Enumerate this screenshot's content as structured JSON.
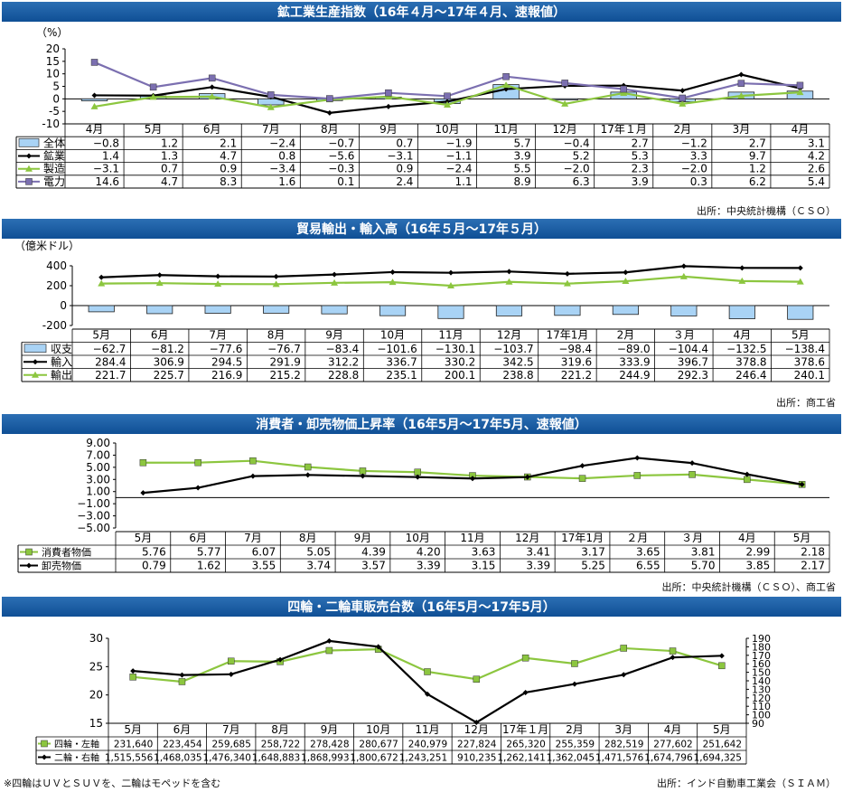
{
  "chart_data": [
    {
      "type": "bar",
      "title": "鉱工業生産指数（16年４月～17年４月、速報値）",
      "ylabel": "（%）",
      "ylim": [
        -10,
        20
      ],
      "yticks": [
        "20",
        "15",
        "10",
        "5",
        "0",
        "-5",
        "-10"
      ],
      "categories": [
        "4月",
        "5月",
        "6月",
        "7月",
        "8月",
        "9月",
        "10月",
        "11月",
        "12月",
        "17年１月",
        "2月",
        "3月",
        "4月"
      ],
      "series": [
        {
          "name": "全体",
          "kind": "bar",
          "color": "#a9d3f5",
          "values": [
            -0.8,
            1.2,
            2.1,
            -2.4,
            -0.7,
            0.7,
            -1.9,
            5.7,
            -0.4,
            2.7,
            -1.2,
            2.7,
            3.1
          ],
          "labels": [
            "−0.8",
            "1.2",
            "2.1",
            "−2.4",
            "−0.7",
            "0.7",
            "−1.9",
            "5.7",
            "−0.4",
            "2.7",
            "−1.2",
            "2.7",
            "3.1"
          ]
        },
        {
          "name": "鉱業",
          "kind": "line",
          "color": "#000000",
          "marker": "diamond",
          "values": [
            1.4,
            1.3,
            4.7,
            0.8,
            -5.6,
            -3.1,
            -1.1,
            3.9,
            5.2,
            5.3,
            3.3,
            9.7,
            4.2
          ],
          "labels": [
            "1.4",
            "1.3",
            "4.7",
            "0.8",
            "−5.6",
            "−3.1",
            "−1.1",
            "3.9",
            "5.2",
            "5.3",
            "3.3",
            "9.7",
            "4.2"
          ]
        },
        {
          "name": "製造",
          "kind": "line",
          "color": "#8cc63f",
          "marker": "triangle",
          "values": [
            -3.1,
            0.7,
            0.9,
            -3.4,
            -0.3,
            0.9,
            -2.4,
            5.5,
            -2.0,
            2.3,
            -2.0,
            1.2,
            2.6
          ],
          "labels": [
            "−3.1",
            "0.7",
            "0.9",
            "−3.4",
            "−0.3",
            "0.9",
            "−2.4",
            "5.5",
            "−2.0",
            "2.3",
            "−2.0",
            "1.2",
            "2.6"
          ]
        },
        {
          "name": "電力",
          "kind": "line",
          "color": "#7b6fb0",
          "marker": "square",
          "values": [
            14.6,
            4.7,
            8.3,
            1.6,
            0.1,
            2.4,
            1.1,
            8.9,
            6.3,
            3.9,
            0.3,
            6.2,
            5.4
          ],
          "labels": [
            "14.6",
            "4.7",
            "8.3",
            "1.6",
            "0.1",
            "2.4",
            "1.1",
            "8.9",
            "6.3",
            "3.9",
            "0.3",
            "6.2",
            "5.4"
          ]
        }
      ],
      "source": "出所：中央統計機構（ＣＳＯ）"
    },
    {
      "type": "bar",
      "title": "貿易輸出・輸入高（16年５月～17年５月）",
      "ylabel": "（億米ドル）",
      "ylim": [
        -200,
        400
      ],
      "yticks": [
        "400",
        "200",
        "0",
        "-200"
      ],
      "categories": [
        "5月",
        "6月",
        "7月",
        "8月",
        "9月",
        "10月",
        "11月",
        "12月",
        "17年1月",
        "2月",
        "３月",
        "4月",
        "5月"
      ],
      "series": [
        {
          "name": "収支",
          "kind": "bar",
          "color": "#a9d3f5",
          "values": [
            -62.7,
            -81.2,
            -77.6,
            -76.7,
            -83.4,
            -101.6,
            -130.1,
            -103.7,
            -98.4,
            -89.0,
            -104.4,
            -132.5,
            -138.4
          ],
          "labels": [
            "−62.7",
            "−81.2",
            "−77.6",
            "−76.7",
            "−83.4",
            "−101.6",
            "−130.1",
            "−103.7",
            "−98.4",
            "−89.0",
            "−104.4",
            "−132.5",
            "−138.4"
          ]
        },
        {
          "name": "輸入",
          "kind": "line",
          "color": "#000000",
          "marker": "diamond",
          "values": [
            284.4,
            306.9,
            294.5,
            291.9,
            312.2,
            336.7,
            330.2,
            342.5,
            319.6,
            333.9,
            396.7,
            378.8,
            378.6
          ],
          "labels": [
            "284.4",
            "306.9",
            "294.5",
            "291.9",
            "312.2",
            "336.7",
            "330.2",
            "342.5",
            "319.6",
            "333.9",
            "396.7",
            "378.8",
            "378.6"
          ]
        },
        {
          "name": "輸出",
          "kind": "line",
          "color": "#8cc63f",
          "marker": "triangle",
          "values": [
            221.7,
            225.7,
            216.9,
            215.2,
            228.8,
            235.1,
            200.1,
            238.8,
            221.2,
            244.9,
            292.3,
            246.4,
            240.1
          ],
          "labels": [
            "221.7",
            "225.7",
            "216.9",
            "215.2",
            "228.8",
            "235.1",
            "200.1",
            "238.8",
            "221.2",
            "244.9",
            "292.3",
            "246.4",
            "240.1"
          ]
        }
      ],
      "source": "出所：商工省"
    },
    {
      "type": "line",
      "title": "消費者・卸売物価上昇率（16年5月～17年5月、速報値）",
      "ylim": [
        -5,
        9
      ],
      "yticks": [
        "9.00",
        "7.00",
        "5.00",
        "3.00",
        "1.00",
        "−1.00",
        "−3.00",
        "−5.00"
      ],
      "categories": [
        "5月",
        "6月",
        "7月",
        "8月",
        "9月",
        "10月",
        "11月",
        "12月",
        "17年1月",
        "２月",
        "３月",
        "4月",
        "5月"
      ],
      "series": [
        {
          "name": "消費者物価",
          "kind": "line",
          "color": "#8cc63f",
          "marker": "square",
          "values": [
            5.76,
            5.77,
            6.07,
            5.05,
            4.39,
            4.2,
            3.63,
            3.41,
            3.17,
            3.65,
            3.81,
            2.99,
            2.18
          ],
          "labels": [
            "5.76",
            "5.77",
            "6.07",
            "5.05",
            "4.39",
            "4.20",
            "3.63",
            "3.41",
            "3.17",
            "3.65",
            "3.81",
            "2.99",
            "2.18"
          ]
        },
        {
          "name": "卸売物価",
          "kind": "line",
          "color": "#000000",
          "marker": "diamond",
          "values": [
            0.79,
            1.62,
            3.55,
            3.74,
            3.57,
            3.39,
            3.15,
            3.39,
            5.25,
            6.55,
            5.7,
            3.85,
            2.17
          ],
          "labels": [
            "0.79",
            "1.62",
            "3.55",
            "3.74",
            "3.57",
            "3.39",
            "3.15",
            "3.39",
            "5.25",
            "6.55",
            "5.70",
            "3.85",
            "2.17"
          ]
        }
      ],
      "source": "出所：中央統計機構（ＣＳＯ）、商工省"
    },
    {
      "type": "line",
      "title": "四輪・二輪車販売台数（16年5月～17年5月）",
      "ylim": [
        15,
        30
      ],
      "yticks": [
        "30",
        "25",
        "20",
        "15"
      ],
      "y2lim": [
        90,
        190
      ],
      "y2ticks": [
        "190",
        "180",
        "170",
        "160",
        "150",
        "140",
        "130",
        "120",
        "110",
        "100",
        "90"
      ],
      "categories": [
        "5月",
        "6月",
        "7月",
        "8月",
        "9月",
        "10月",
        "11月",
        "12月",
        "17年１月",
        "2月",
        "3月",
        "4月",
        "5月"
      ],
      "series": [
        {
          "name": "四輪・左軸",
          "kind": "line",
          "axis": "left",
          "color": "#8cc63f",
          "marker": "square",
          "values": [
            231640,
            223454,
            259685,
            258722,
            278428,
            280677,
            240979,
            227824,
            265320,
            255359,
            282519,
            277602,
            251642
          ],
          "labels": [
            "231,640",
            "223,454",
            "259,685",
            "258,722",
            "278,428",
            "280,677",
            "240,979",
            "227,824",
            "265,320",
            "255,359",
            "282,519",
            "277,602",
            "251,642"
          ]
        },
        {
          "name": "二輪・右軸",
          "kind": "line",
          "axis": "right",
          "color": "#000000",
          "marker": "diamond",
          "values": [
            1515556,
            1468035,
            1476340,
            1648883,
            1868993,
            1800672,
            1243251,
            910235,
            1262141,
            1362045,
            1471576,
            1674796,
            1694325
          ],
          "labels": [
            "1,515,556",
            "1,468,035",
            "1,476,340",
            "1,648,883",
            "1,868,993",
            "1,800,672",
            "1,243,251",
            "910,235",
            "1,262,141",
            "1,362,045",
            "1,471,576",
            "1,674,796",
            "1,694,325"
          ]
        }
      ],
      "source": "出所：インド自動車工業会（ＳＩＡＭ）"
    }
  ],
  "note": "※四輪はＵＶとＳＵＶを、二輪はモペッドを含む"
}
